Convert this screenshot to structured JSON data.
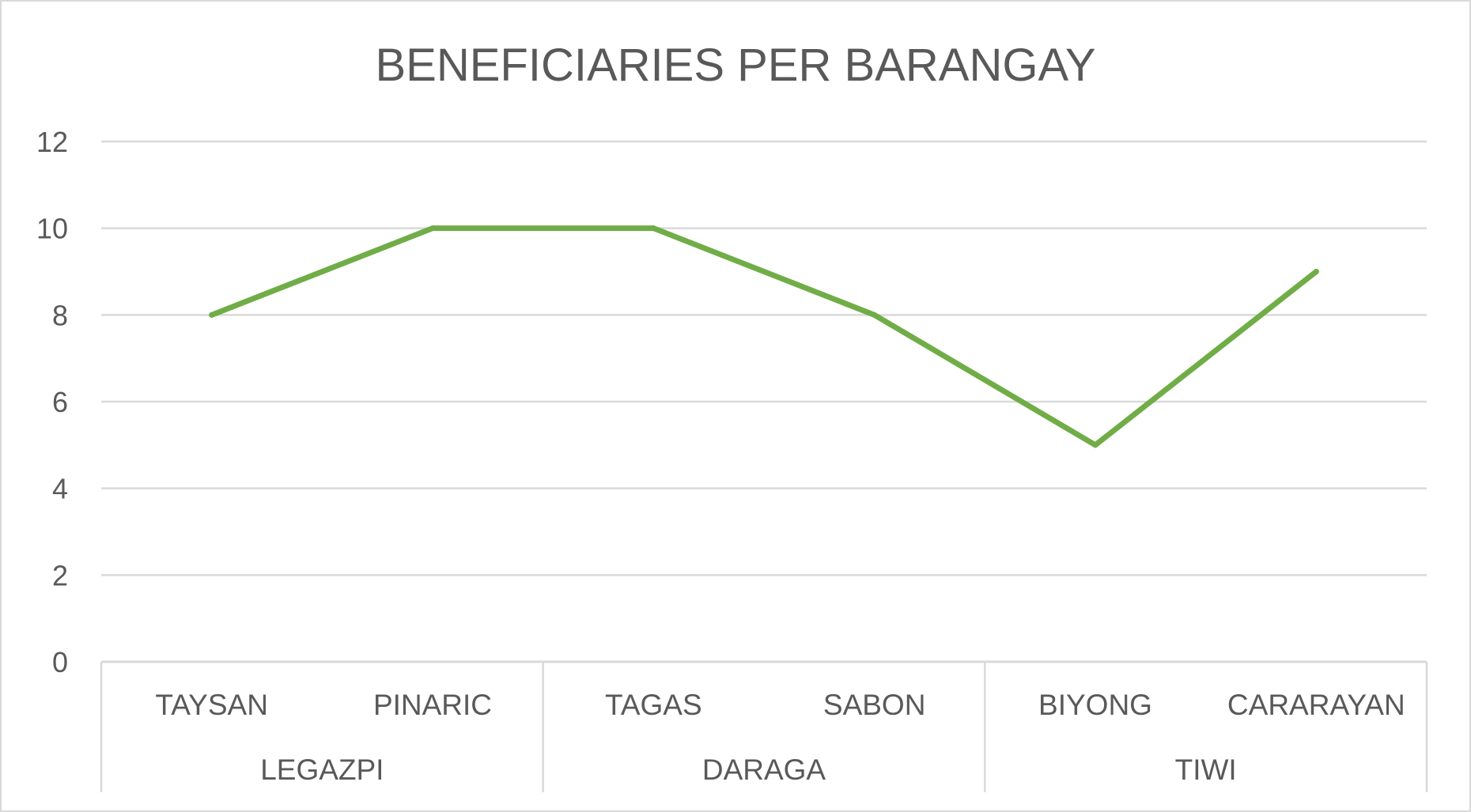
{
  "chart_data": {
    "type": "line",
    "title": "BENEFICIARIES PER BARANGAY",
    "xlabel": "",
    "ylabel": "",
    "ylim": [
      0,
      12
    ],
    "y_ticks": [
      0,
      2,
      4,
      6,
      8,
      10,
      12
    ],
    "grid": true,
    "legend": "none",
    "categories": [
      "TAYSAN",
      "PINARIC",
      "TAGAS",
      "SABON",
      "BIYONG",
      "CARARAYAN"
    ],
    "groups": [
      {
        "label": "LEGAZPI",
        "categories": [
          "TAYSAN",
          "PINARIC"
        ]
      },
      {
        "label": "DARAGA",
        "categories": [
          "TAGAS",
          "SABON"
        ]
      },
      {
        "label": "TIWI",
        "categories": [
          "BIYONG",
          "CARARAYAN"
        ]
      }
    ],
    "series": [
      {
        "values": [
          8,
          10,
          10,
          8,
          5,
          9
        ],
        "color": "#70ad47"
      }
    ],
    "colors": {
      "gridline": "#d9d9d9",
      "text": "#595959",
      "line": "#70ad47"
    }
  }
}
